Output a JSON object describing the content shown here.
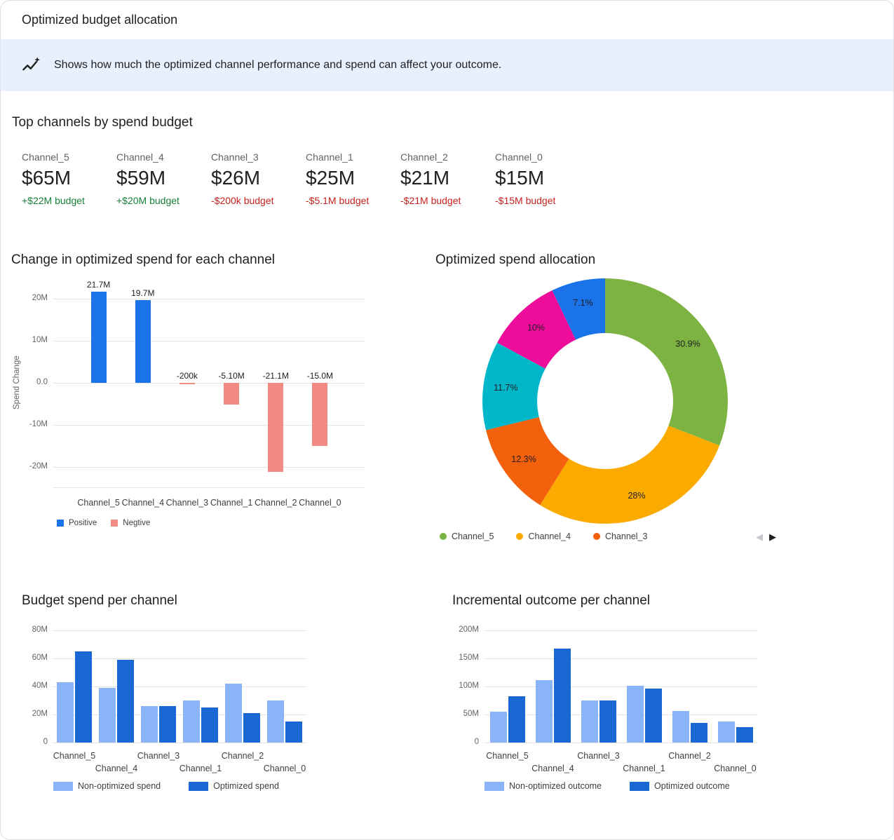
{
  "header": {
    "title": "Optimized budget allocation"
  },
  "banner": {
    "icon": "insights-icon",
    "text": "Shows how much the optimized channel performance and spend can affect your outcome."
  },
  "top_channels": {
    "title": "Top channels by spend budget",
    "cards": [
      {
        "name": "Channel_5",
        "value": "$65M",
        "delta": "+$22M budget",
        "trend": "positive"
      },
      {
        "name": "Channel_4",
        "value": "$59M",
        "delta": "+$20M budget",
        "trend": "positive"
      },
      {
        "name": "Channel_3",
        "value": "$26M",
        "delta": "-$200k budget",
        "trend": "negative"
      },
      {
        "name": "Channel_1",
        "value": "$25M",
        "delta": "-$5.1M budget",
        "trend": "negative"
      },
      {
        "name": "Channel_2",
        "value": "$21M",
        "delta": "-$21M budget",
        "trend": "negative"
      },
      {
        "name": "Channel_0",
        "value": "$15M",
        "delta": "-$15M budget",
        "trend": "negative"
      }
    ]
  },
  "donut_pager": {
    "prev": "◀",
    "next": "▶"
  },
  "chart_data": [
    {
      "id": "spend_change",
      "type": "bar",
      "title": "Change in optimized spend for each channel",
      "ylabel": "Spend Change",
      "unit": "M",
      "categories": [
        "Channel_5",
        "Channel_4",
        "Channel_3",
        "Channel_1",
        "Channel_2",
        "Channel_0"
      ],
      "values": [
        21.7,
        19.7,
        -0.2,
        -5.1,
        -21.1,
        -15.0
      ],
      "bar_labels": [
        "21.7M",
        "19.7M",
        "-200k",
        "-5.10M",
        "-21.1M",
        "-15.0M"
      ],
      "ylim": [
        -25,
        25
      ],
      "yticks": [
        {
          "v": 20,
          "label": "20M"
        },
        {
          "v": 10,
          "label": "10M"
        },
        {
          "v": 0,
          "label": "0.0"
        },
        {
          "v": -10,
          "label": "-10M"
        },
        {
          "v": -20,
          "label": "-20M"
        }
      ],
      "legend": [
        {
          "label": "Positive",
          "color": "#1a73e8"
        },
        {
          "label": "Negtive",
          "color": "#f28b82"
        }
      ],
      "grid": true,
      "legend_position": "bottom-left"
    },
    {
      "id": "spend_allocation",
      "type": "pie",
      "title": "Optimized spend allocation",
      "slices": [
        {
          "pct": 30.9,
          "label": "30.9%",
          "color": "#7cb342"
        },
        {
          "pct": 28.0,
          "label": "28%",
          "color": "#fbab00"
        },
        {
          "pct": 12.3,
          "label": "12.3%",
          "color": "#f4610d"
        },
        {
          "pct": 11.7,
          "label": "11.7%",
          "color": "#00b6c9"
        },
        {
          "pct": 10.0,
          "label": "10%",
          "color": "#ee0c9a"
        },
        {
          "pct": 7.1,
          "label": "7.1%",
          "color": "#1a73e8"
        }
      ],
      "legend": [
        {
          "label": "Channel_5",
          "color": "#7cb342"
        },
        {
          "label": "Channel_4",
          "color": "#fbab00"
        },
        {
          "label": "Channel_3",
          "color": "#f4610d"
        }
      ],
      "legend_position": "bottom",
      "legend_paginated": true
    },
    {
      "id": "budget_spend",
      "type": "bar",
      "title": "Budget spend per channel",
      "unit": "M",
      "categories": [
        "Channel_5",
        "Channel_4",
        "Channel_3",
        "Channel_1",
        "Channel_2",
        "Channel_0"
      ],
      "series": [
        {
          "name": "Non-optimized spend",
          "color": "#8ab4f8",
          "values": [
            43,
            39,
            26,
            30,
            42,
            30
          ]
        },
        {
          "name": "Optimized spend",
          "color": "#1967d2",
          "values": [
            65,
            59,
            26,
            25,
            21,
            15
          ]
        }
      ],
      "ylim": [
        0,
        80
      ],
      "yticks": [
        {
          "v": 80,
          "label": "80M"
        },
        {
          "v": 60,
          "label": "60M"
        },
        {
          "v": 40,
          "label": "40M"
        },
        {
          "v": 20,
          "label": "20M"
        },
        {
          "v": 0,
          "label": "0"
        }
      ],
      "grid": true,
      "legend_position": "bottom-left"
    },
    {
      "id": "incremental_outcome",
      "type": "bar",
      "title": "Incremental outcome per channel",
      "unit": "M",
      "categories": [
        "Channel_5",
        "Channel_4",
        "Channel_3",
        "Channel_1",
        "Channel_2",
        "Channel_0"
      ],
      "series": [
        {
          "name": "Non-optimized outcome",
          "color": "#8ab4f8",
          "values": [
            55,
            111,
            75,
            101,
            56,
            38
          ]
        },
        {
          "name": "Optimized outcome",
          "color": "#1967d2",
          "values": [
            82,
            167,
            75,
            96,
            35,
            27
          ]
        }
      ],
      "ylim": [
        0,
        200
      ],
      "yticks": [
        {
          "v": 200,
          "label": "200M"
        },
        {
          "v": 150,
          "label": "150M"
        },
        {
          "v": 100,
          "label": "100M"
        },
        {
          "v": 50,
          "label": "50M"
        },
        {
          "v": 0,
          "label": "0"
        }
      ],
      "grid": true,
      "legend_position": "bottom-left"
    }
  ]
}
